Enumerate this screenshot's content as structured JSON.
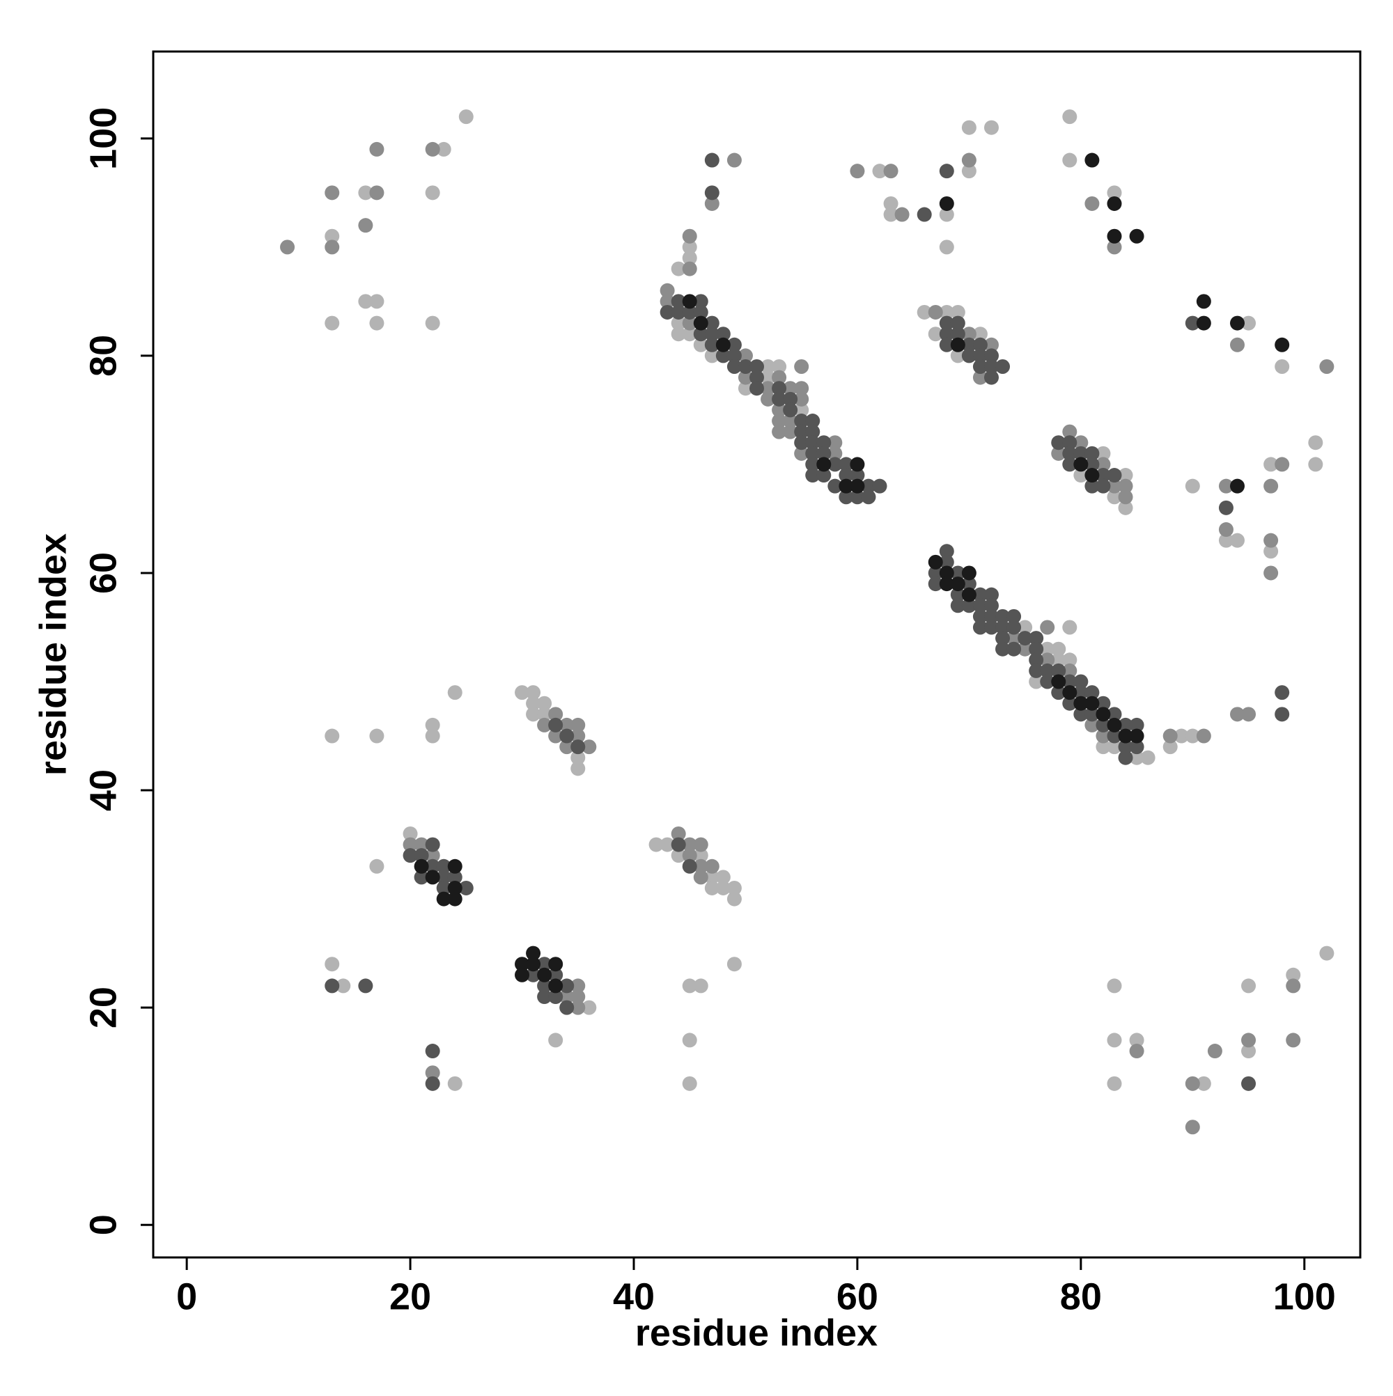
{
  "chart_data": {
    "type": "scatter",
    "xlabel": "residue index",
    "ylabel": "residue index",
    "xlim": [
      -3,
      105
    ],
    "ylim": [
      -3,
      108
    ],
    "xticks": [
      0,
      20,
      40,
      60,
      80,
      100
    ],
    "yticks": [
      0,
      20,
      40,
      60,
      80,
      100
    ],
    "grid": false,
    "series": [
      {
        "color": "#b3b3b3",
        "x": [
          13,
          13,
          16,
          16,
          17,
          17,
          23,
          22,
          22,
          25,
          13,
          17,
          22,
          22,
          24,
          30,
          31,
          31,
          32,
          31,
          32,
          35,
          35,
          20,
          17,
          42,
          43,
          44,
          46,
          47,
          48,
          47,
          48,
          49,
          49,
          36,
          13,
          14,
          24,
          33,
          45,
          46,
          45,
          45,
          49,
          44,
          45,
          45,
          44,
          44,
          45,
          46,
          47,
          52,
          53,
          52,
          50,
          55,
          62,
          63,
          63,
          68,
          68,
          70,
          70,
          72,
          79,
          79,
          83,
          66,
          68,
          69,
          67,
          71,
          69,
          82,
          80,
          84,
          83,
          84,
          75,
          79,
          77,
          78,
          78,
          79,
          76,
          82,
          83,
          85,
          86,
          88,
          89,
          90,
          95,
          98,
          90,
          93,
          94,
          97,
          97,
          101,
          101,
          83,
          83,
          83,
          85,
          91,
          95,
          95,
          99,
          102
        ],
        "y": [
          91,
          83,
          95,
          85,
          85,
          83,
          99,
          95,
          83,
          102,
          45,
          45,
          46,
          45,
          49,
          49,
          49,
          48,
          48,
          47,
          47,
          43,
          42,
          36,
          33,
          35,
          35,
          34,
          34,
          32,
          32,
          31,
          31,
          31,
          30,
          20,
          24,
          22,
          13,
          17,
          22,
          22,
          17,
          13,
          24,
          88,
          90,
          89,
          83,
          82,
          82,
          81,
          80,
          79,
          79,
          78,
          77,
          75,
          97,
          94,
          93,
          93,
          90,
          101,
          97,
          101,
          102,
          98,
          95,
          84,
          84,
          84,
          82,
          82,
          80,
          71,
          69,
          69,
          67,
          66,
          55,
          55,
          53,
          53,
          52,
          52,
          50,
          44,
          44,
          43,
          43,
          44,
          45,
          45,
          83,
          79,
          68,
          63,
          63,
          70,
          62,
          72,
          70,
          22,
          17,
          13,
          17,
          13,
          22,
          16,
          23,
          25
        ]
      },
      {
        "color": "#8c8c8c",
        "x": [
          9,
          13,
          13,
          17,
          16,
          17,
          22,
          33,
          32,
          34,
          35,
          33,
          35,
          34,
          36,
          20,
          21,
          22,
          45,
          44,
          46,
          45,
          46,
          47,
          46,
          35,
          34,
          35,
          35,
          22,
          43,
          43,
          45,
          45,
          45,
          50,
          50,
          53,
          52,
          54,
          55,
          55,
          52,
          55,
          53,
          53,
          54,
          53,
          54,
          58,
          55,
          58,
          49,
          47,
          60,
          63,
          64,
          70,
          81,
          83,
          67,
          70,
          72,
          71,
          79,
          80,
          78,
          82,
          83,
          84,
          84,
          74,
          77,
          75,
          77,
          79,
          81,
          82,
          88,
          91,
          94,
          102,
          93,
          93,
          98,
          97,
          97,
          97,
          94,
          95,
          85,
          90,
          90,
          92,
          95,
          99,
          99
        ],
        "y": [
          90,
          95,
          90,
          95,
          92,
          99,
          99,
          47,
          46,
          46,
          46,
          45,
          45,
          44,
          44,
          35,
          35,
          34,
          35,
          36,
          35,
          34,
          33,
          33,
          32,
          22,
          21,
          21,
          20,
          14,
          86,
          85,
          91,
          88,
          83,
          80,
          78,
          78,
          77,
          77,
          77,
          79,
          76,
          76,
          75,
          74,
          74,
          73,
          73,
          72,
          71,
          71,
          98,
          94,
          97,
          97,
          93,
          98,
          94,
          90,
          84,
          82,
          81,
          78,
          73,
          72,
          71,
          70,
          68,
          68,
          67,
          54,
          55,
          53,
          52,
          51,
          46,
          45,
          45,
          45,
          81,
          79,
          68,
          64,
          70,
          68,
          63,
          60,
          47,
          47,
          16,
          13,
          9,
          16,
          17,
          22,
          17
        ]
      },
      {
        "color": "#555555",
        "x": [
          33,
          34,
          35,
          22,
          20,
          21,
          22,
          23,
          21,
          23,
          24,
          23,
          25,
          44,
          45,
          32,
          31,
          33,
          32,
          34,
          32,
          33,
          34,
          13,
          16,
          22,
          22,
          43,
          44,
          46,
          44,
          45,
          46,
          47,
          46,
          47,
          48,
          47,
          49,
          48,
          49,
          49,
          50,
          51,
          51,
          51,
          53,
          53,
          54,
          54,
          55,
          56,
          55,
          56,
          55,
          56,
          57,
          56,
          57,
          56,
          58,
          59,
          56,
          57,
          59,
          60,
          58,
          61,
          62,
          59,
          60,
          61,
          47,
          47,
          66,
          68,
          68,
          69,
          68,
          69,
          68,
          70,
          71,
          70,
          71,
          72,
          71,
          72,
          73,
          72,
          78,
          79,
          79,
          80,
          81,
          79,
          81,
          82,
          83,
          81,
          82,
          68,
          68,
          67,
          69,
          67,
          70,
          69,
          71,
          72,
          69,
          70,
          71,
          72,
          71,
          72,
          73,
          74,
          71,
          72,
          73,
          74,
          73,
          75,
          76,
          73,
          74,
          76,
          76,
          76,
          77,
          78,
          77,
          79,
          80,
          78,
          80,
          81,
          79,
          82,
          80,
          81,
          83,
          82,
          84,
          85,
          83,
          84,
          85,
          84,
          90,
          93,
          98,
          98,
          95
        ],
        "y": [
          46,
          45,
          44,
          35,
          34,
          34,
          33,
          33,
          32,
          32,
          32,
          31,
          31,
          35,
          33,
          24,
          23,
          23,
          22,
          22,
          21,
          21,
          20,
          22,
          22,
          16,
          13,
          84,
          85,
          85,
          84,
          84,
          84,
          83,
          82,
          82,
          82,
          81,
          81,
          80,
          80,
          79,
          79,
          79,
          78,
          77,
          77,
          76,
          76,
          75,
          74,
          74,
          73,
          73,
          72,
          72,
          72,
          71,
          71,
          70,
          70,
          70,
          69,
          69,
          69,
          69,
          68,
          68,
          68,
          67,
          67,
          67,
          98,
          95,
          93,
          97,
          83,
          83,
          82,
          82,
          81,
          81,
          81,
          80,
          80,
          80,
          79,
          79,
          79,
          78,
          72,
          72,
          71,
          71,
          71,
          70,
          70,
          69,
          69,
          68,
          68,
          62,
          61,
          60,
          60,
          59,
          59,
          58,
          58,
          58,
          57,
          57,
          57,
          57,
          56,
          56,
          56,
          56,
          55,
          55,
          55,
          55,
          54,
          54,
          54,
          53,
          53,
          53,
          52,
          51,
          51,
          51,
          50,
          50,
          50,
          49,
          49,
          49,
          48,
          48,
          47,
          47,
          47,
          46,
          46,
          46,
          45,
          44,
          44,
          43,
          83,
          66,
          49,
          47,
          13
        ]
      },
      {
        "color": "#1a1a1a",
        "x": [
          21,
          24,
          22,
          24,
          23,
          24,
          30,
          31,
          31,
          33,
          30,
          32,
          33,
          45,
          46,
          48,
          57,
          60,
          59,
          60,
          68,
          81,
          83,
          83,
          85,
          69,
          80,
          81,
          67,
          68,
          70,
          68,
          69,
          70,
          78,
          79,
          80,
          81,
          82,
          83,
          84,
          85,
          91,
          91,
          94,
          98,
          94
        ],
        "y": [
          33,
          33,
          32,
          31,
          30,
          30,
          24,
          24,
          25,
          24,
          23,
          23,
          22,
          85,
          83,
          81,
          70,
          70,
          68,
          68,
          94,
          98,
          94,
          91,
          91,
          81,
          70,
          69,
          61,
          60,
          60,
          59,
          59,
          58,
          50,
          49,
          48,
          48,
          47,
          46,
          45,
          45,
          85,
          83,
          83,
          81,
          68
        ]
      }
    ]
  }
}
